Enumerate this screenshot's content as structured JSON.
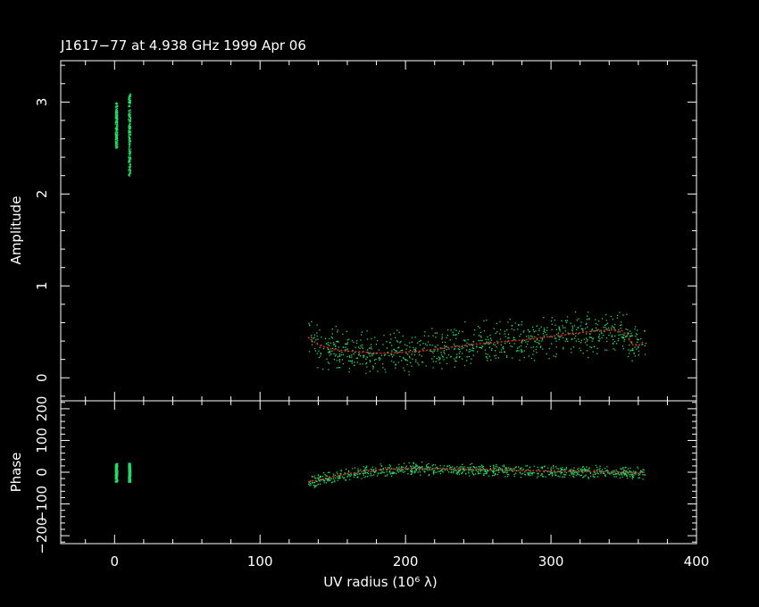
{
  "title": "J1617−77 at 4.938 GHz 1999 Apr 06",
  "colors": {
    "background": "#000000",
    "axes": "#ffffff",
    "data_points": "#22dd66",
    "model": "#dd2222"
  },
  "chart_data": [
    {
      "type": "scatter",
      "panel": "amplitude",
      "xlabel": "UV radius  (10⁶ λ)",
      "ylabel": "Amplitude",
      "xlim": [
        -37,
        400
      ],
      "ylim": [
        -0.25,
        3.45
      ],
      "y_ticks": [
        "0",
        "1",
        "2",
        "3"
      ],
      "data_clusters": [
        {
          "x": 1,
          "y_range": [
            2.5,
            3.0
          ]
        },
        {
          "x": 10,
          "y_range": [
            2.2,
            3.1
          ]
        },
        {
          "x_range": [
            133,
            365
          ],
          "y_range": [
            0.05,
            0.95
          ]
        }
      ],
      "series": [
        {
          "role": "model",
          "x": [
            133,
            140,
            150,
            160,
            170,
            180,
            190,
            200,
            210,
            220,
            230,
            240,
            250,
            260,
            270,
            280,
            290,
            300,
            310,
            320,
            330,
            340,
            348,
            352,
            356,
            360,
            364
          ],
          "y": [
            0.44,
            0.36,
            0.31,
            0.29,
            0.28,
            0.27,
            0.27,
            0.28,
            0.29,
            0.31,
            0.33,
            0.35,
            0.37,
            0.38,
            0.4,
            0.41,
            0.43,
            0.45,
            0.47,
            0.49,
            0.51,
            0.52,
            0.52,
            0.47,
            0.36,
            0.35,
            0.4
          ]
        }
      ]
    },
    {
      "type": "scatter",
      "panel": "phase",
      "xlabel": "UV radius  (10⁶ λ)",
      "ylabel": "Phase",
      "xlim": [
        -37,
        400
      ],
      "ylim": [
        -225,
        225
      ],
      "x_ticks": [
        "0",
        "100",
        "200",
        "300",
        "400"
      ],
      "y_ticks": [
        "−200",
        "−100",
        "0",
        "100",
        "200"
      ],
      "data_clusters": [
        {
          "x": 1,
          "y_range": [
            -30,
            30
          ]
        },
        {
          "x": 10,
          "y_range": [
            -30,
            30
          ]
        },
        {
          "x_range": [
            133,
            365
          ],
          "y_range": [
            -50,
            70
          ]
        }
      ],
      "series": [
        {
          "role": "model",
          "x": [
            133,
            145,
            160,
            175,
            190,
            205,
            220,
            240,
            260,
            280,
            300,
            320,
            340,
            352,
            358,
            365
          ],
          "y": [
            -30,
            -20,
            -5,
            5,
            10,
            12,
            12,
            10,
            8,
            5,
            3,
            2,
            1,
            0,
            -2,
            0
          ]
        }
      ]
    }
  ]
}
